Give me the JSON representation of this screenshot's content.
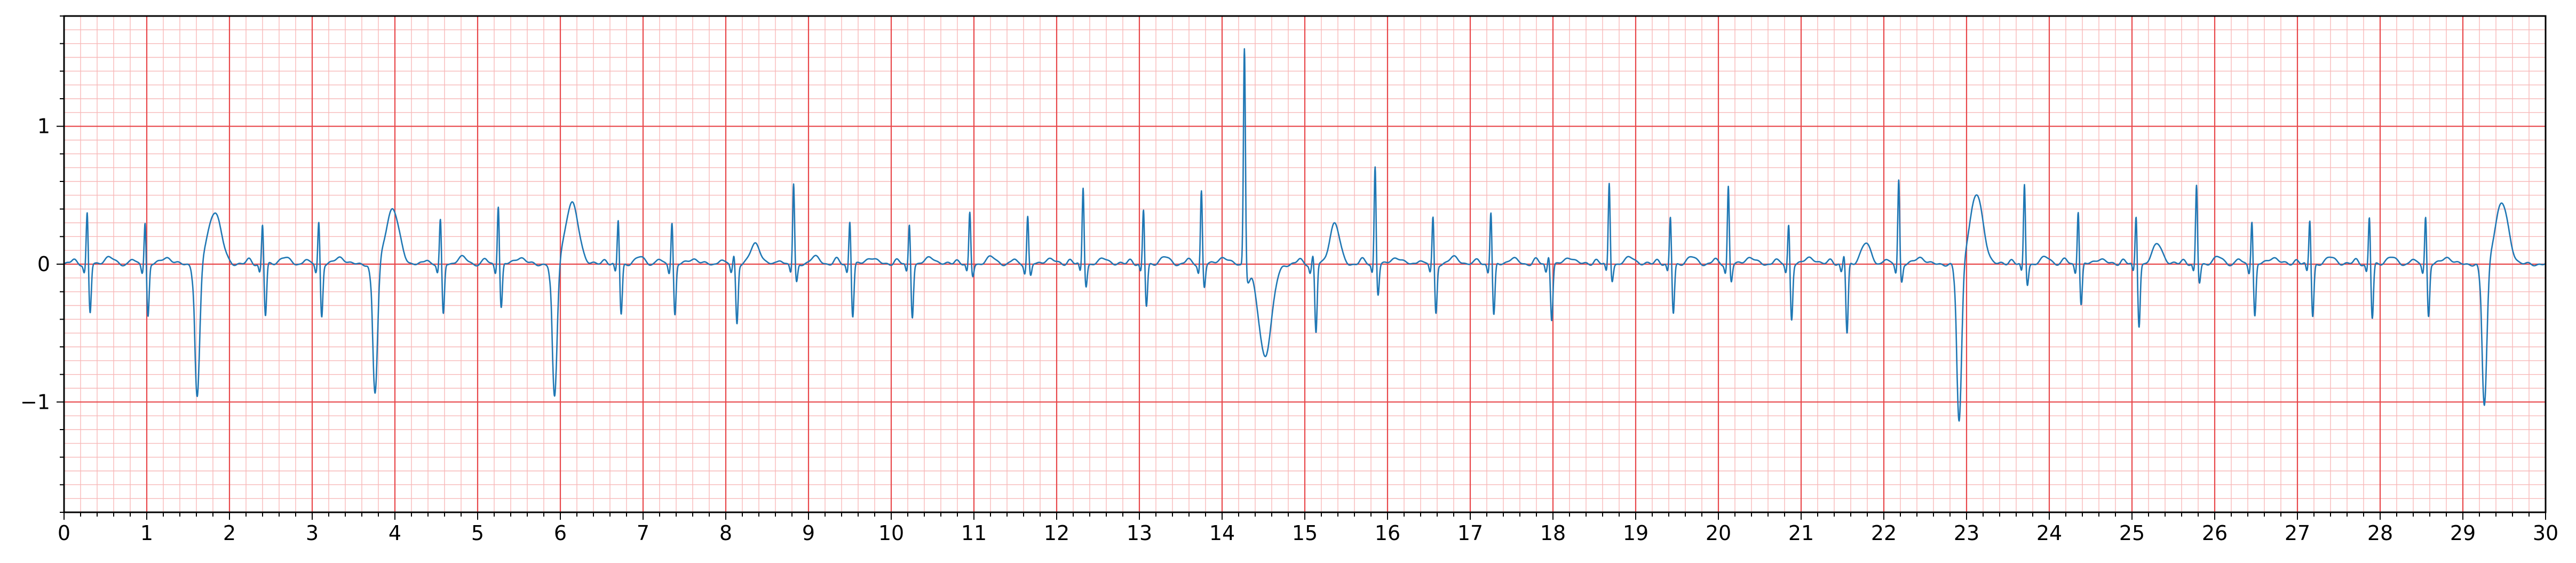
{
  "chart_data": {
    "type": "line",
    "title": "",
    "xlabel": "",
    "ylabel": "",
    "xlim": [
      0,
      30
    ],
    "ylim": [
      -1.8,
      1.8
    ],
    "x_ticks": [
      "0",
      "1",
      "2",
      "3",
      "4",
      "5",
      "6",
      "7",
      "8",
      "9",
      "10",
      "11",
      "12",
      "13",
      "14",
      "15",
      "16",
      "17",
      "18",
      "19",
      "20",
      "21",
      "22",
      "23",
      "24",
      "25",
      "26",
      "27",
      "28",
      "29",
      "30"
    ],
    "y_ticks": [
      {
        "value": 1,
        "label": "1"
      },
      {
        "value": 0,
        "label": "0"
      },
      {
        "value": -1,
        "label": "−1"
      }
    ],
    "grid": {
      "major_x_step": 1,
      "minor_x_step": 0.2,
      "major_y_step": 1,
      "minor_y_step": 0.1,
      "major_color": "#e8474a",
      "minor_color": "#f7b8b8"
    },
    "line_color": "#1f77b4",
    "baseline": 0.0,
    "beats": [
      {
        "t": 0.28,
        "r": 0.38,
        "s": -0.36,
        "tw": 0.05
      },
      {
        "t": 0.98,
        "r": 0.32,
        "s": -0.38,
        "tw": 0.05
      },
      {
        "t": 1.6,
        "r": 0.08,
        "s": -0.98,
        "tw": 0.38,
        "ectopic": true
      },
      {
        "t": 2.4,
        "r": 0.3,
        "s": -0.38,
        "tw": 0.05
      },
      {
        "t": 3.08,
        "r": 0.32,
        "s": -0.38,
        "tw": 0.05
      },
      {
        "t": 3.75,
        "r": 0.08,
        "s": -0.95,
        "tw": 0.4,
        "ectopic": true
      },
      {
        "t": 4.55,
        "r": 0.33,
        "s": -0.37,
        "tw": 0.05
      },
      {
        "t": 5.25,
        "r": 0.44,
        "s": -0.32,
        "tw": 0.05
      },
      {
        "t": 5.92,
        "r": 0.08,
        "s": -0.98,
        "tw": 0.44,
        "ectopic": true
      },
      {
        "t": 6.7,
        "r": 0.33,
        "s": -0.37,
        "tw": 0.05
      },
      {
        "t": 7.35,
        "r": 0.32,
        "s": -0.37,
        "tw": 0.04
      },
      {
        "t": 8.1,
        "r": 0.07,
        "s": -0.43,
        "tw": 0.15
      },
      {
        "t": 8.82,
        "r": 0.58,
        "s": -0.14,
        "tw": 0.05
      },
      {
        "t": 9.5,
        "r": 0.33,
        "s": -0.38,
        "tw": 0.05
      },
      {
        "t": 10.22,
        "r": 0.3,
        "s": -0.38,
        "tw": 0.05
      },
      {
        "t": 10.95,
        "r": 0.37,
        "s": -0.09,
        "tw": 0.05
      },
      {
        "t": 11.65,
        "r": 0.35,
        "s": -0.09,
        "tw": 0.04
      },
      {
        "t": 12.32,
        "r": 0.56,
        "s": -0.16,
        "tw": 0.04
      },
      {
        "t": 13.05,
        "r": 0.4,
        "s": -0.31,
        "tw": 0.05
      },
      {
        "t": 13.75,
        "r": 0.54,
        "s": -0.17,
        "tw": 0.05
      },
      {
        "t": 14.3,
        "r": 1.62,
        "s": -0.11,
        "tw": -0.66,
        "ectopic": true
      },
      {
        "t": 15.1,
        "r": 0.07,
        "s": -0.5,
        "tw": 0.3
      },
      {
        "t": 15.85,
        "r": 0.72,
        "s": -0.22,
        "tw": 0.05
      },
      {
        "t": 16.55,
        "r": 0.35,
        "s": -0.36,
        "tw": 0.05
      },
      {
        "t": 17.25,
        "r": 0.39,
        "s": -0.38,
        "tw": 0.04
      },
      {
        "t": 17.95,
        "r": 0.07,
        "s": -0.4,
        "tw": 0.05
      },
      {
        "t": 18.68,
        "r": 0.59,
        "s": -0.12,
        "tw": 0.05
      },
      {
        "t": 19.42,
        "r": 0.35,
        "s": -0.36,
        "tw": 0.05
      },
      {
        "t": 20.12,
        "r": 0.57,
        "s": -0.13,
        "tw": 0.05
      },
      {
        "t": 20.85,
        "r": 0.3,
        "s": -0.4,
        "tw": 0.05
      },
      {
        "t": 21.52,
        "r": 0.07,
        "s": -0.51,
        "tw": 0.15
      },
      {
        "t": 22.18,
        "r": 0.62,
        "s": -0.13,
        "tw": 0.05
      },
      {
        "t": 22.9,
        "r": 0.07,
        "s": -1.16,
        "tw": 0.5,
        "ectopic": true
      },
      {
        "t": 23.7,
        "r": 0.58,
        "s": -0.15,
        "tw": 0.05
      },
      {
        "t": 24.35,
        "r": 0.4,
        "s": -0.3,
        "tw": 0.04
      },
      {
        "t": 25.05,
        "r": 0.36,
        "s": -0.45,
        "tw": 0.15
      },
      {
        "t": 25.78,
        "r": 0.57,
        "s": -0.14,
        "tw": 0.05
      },
      {
        "t": 26.45,
        "r": 0.33,
        "s": -0.38,
        "tw": 0.05
      },
      {
        "t": 27.15,
        "r": 0.33,
        "s": -0.38,
        "tw": 0.05
      },
      {
        "t": 27.87,
        "r": 0.35,
        "s": -0.4,
        "tw": 0.05
      },
      {
        "t": 28.55,
        "r": 0.36,
        "s": -0.38,
        "tw": 0.05
      },
      {
        "t": 29.25,
        "r": 0.07,
        "s": -1.04,
        "tw": 0.44,
        "ectopic": true
      }
    ]
  }
}
